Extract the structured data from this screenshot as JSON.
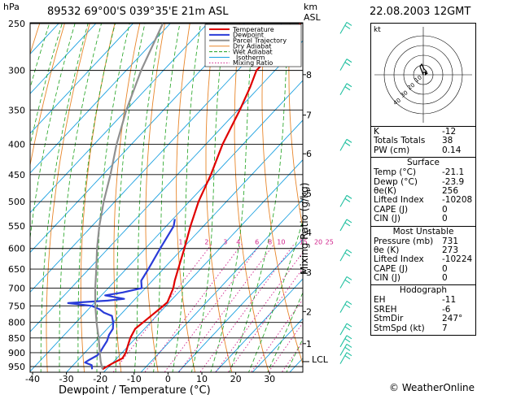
{
  "header": {
    "hpa_label": "hPa",
    "station": "89532  69°00'S  039°35'E    21m  ASL",
    "km_label": "km",
    "asl_label": "ASL",
    "date": "22.08.2003  12GMT"
  },
  "legend": [
    "Temperature",
    "Dewpoint",
    "Parcel Trajectory",
    "Dry Adiabat",
    "Wet Adiabat",
    "Isotherm",
    "Mixing Ratio"
  ],
  "x_axis_title": "Dewpoint / Temperature (°C)",
  "mixing_axis_title": "Mixing Ratio (g/kg)",
  "lcl_label": "LCL",
  "hodograph": {
    "label": "kt",
    "ring_labels": [
      "10",
      "20",
      "30",
      "40"
    ]
  },
  "indices": {
    "top": [
      {
        "label": "K",
        "value": "-12"
      },
      {
        "label": "Totals Totals",
        "value": "38"
      },
      {
        "label": "PW (cm)",
        "value": "0.14"
      }
    ],
    "surface": {
      "title": "Surface",
      "rows": [
        {
          "label": "Temp (°C)",
          "value": "-21.1"
        },
        {
          "label": "Dewp (°C)",
          "value": "-23.9"
        },
        {
          "label": "θe(K)",
          "value": "256"
        },
        {
          "label": "Lifted Index",
          "value": "-10208"
        },
        {
          "label": "CAPE (J)",
          "value": "0"
        },
        {
          "label": "CIN (J)",
          "value": "0"
        }
      ]
    },
    "most_unstable": {
      "title": "Most Unstable",
      "rows": [
        {
          "label": "Pressure (mb)",
          "value": "731"
        },
        {
          "label": "θe (K)",
          "value": "273"
        },
        {
          "label": "Lifted Index",
          "value": "-10224"
        },
        {
          "label": "CAPE (J)",
          "value": "0"
        },
        {
          "label": "CIN (J)",
          "value": "0"
        }
      ]
    },
    "hodograph": {
      "title": "Hodograph",
      "rows": [
        {
          "label": "EH",
          "value": "-11"
        },
        {
          "label": "SREH",
          "value": "-6"
        },
        {
          "label": "StmDir",
          "value": "247°"
        },
        {
          "label": "StmSpd (kt)",
          "value": "7"
        }
      ]
    }
  },
  "copyright": "© WeatherOnline",
  "colors": {
    "temperature": "#e00000",
    "dewpoint": "#2a3cd8",
    "parcel": "#909090",
    "dry_adiabat": "#e8862a",
    "wet_adiabat": "#1aa01a",
    "isotherm": "#1aa0e0",
    "mixing_ratio": "#d0208a",
    "wind": "#20c0a0"
  },
  "chart_data": {
    "type": "line",
    "title": "",
    "xlabel": "Dewpoint / Temperature (°C)",
    "ylabel": "hPa",
    "pressure_ticks": [
      250,
      300,
      350,
      400,
      450,
      500,
      550,
      600,
      650,
      700,
      750,
      800,
      850,
      900,
      950
    ],
    "temp_ticks": [
      -40,
      -30,
      -20,
      -10,
      0,
      10,
      20,
      30
    ],
    "xlim": [
      -40,
      40
    ],
    "ylim": [
      960,
      250
    ],
    "height_ticks_km": [
      {
        "label": "8",
        "p": 305
      },
      {
        "label": "7",
        "p": 357
      },
      {
        "label": "6",
        "p": 415
      },
      {
        "label": "5",
        "p": 484
      },
      {
        "label": "4",
        "p": 564
      },
      {
        "label": "3",
        "p": 658
      },
      {
        "label": "2",
        "p": 767
      },
      {
        "label": "1",
        "p": 869
      }
    ],
    "lcl_p": 932,
    "mixing_ratio_labels": [
      {
        "label": "1",
        "t": -30.5
      },
      {
        "label": "2",
        "t": -23.5
      },
      {
        "label": "3",
        "t": -18.5
      },
      {
        "label": "4",
        "t": -15
      },
      {
        "label": "6",
        "t": -10
      },
      {
        "label": "8",
        "t": -6.5
      },
      {
        "label": "10",
        "t": -3.5
      },
      {
        "label": "15",
        "t": 2.5
      },
      {
        "label": "20",
        "t": 6.5
      },
      {
        "label": "25",
        "t": 9.5
      }
    ],
    "series": [
      {
        "name": "Temperature",
        "points": [
          [
            960,
            -21.1
          ],
          [
            940,
            -20
          ],
          [
            920,
            -18.5
          ],
          [
            900,
            -19
          ],
          [
            880,
            -20
          ],
          [
            860,
            -21
          ],
          [
            850,
            -21.5
          ],
          [
            820,
            -22.5
          ],
          [
            800,
            -22
          ],
          [
            780,
            -21.5
          ],
          [
            760,
            -21
          ],
          [
            740,
            -20.5
          ],
          [
            720,
            -21.5
          ],
          [
            700,
            -22.5
          ],
          [
            680,
            -24
          ],
          [
            650,
            -26
          ],
          [
            600,
            -29.5
          ],
          [
            550,
            -33.5
          ],
          [
            500,
            -37.5
          ],
          [
            450,
            -41
          ],
          [
            400,
            -45.5
          ],
          [
            350,
            -49.5
          ],
          [
            320,
            -52.5
          ],
          [
            300,
            -55
          ],
          [
            280,
            -55
          ],
          [
            260,
            -54.5
          ],
          [
            250,
            -55
          ]
        ]
      },
      {
        "name": "Dewpoint",
        "points": [
          [
            960,
            -23.9
          ],
          [
            945,
            -25
          ],
          [
            935,
            -27.5
          ],
          [
            925,
            -27
          ],
          [
            910,
            -26
          ],
          [
            900,
            -26
          ],
          [
            880,
            -26.5
          ],
          [
            860,
            -27
          ],
          [
            840,
            -28
          ],
          [
            820,
            -28.5
          ],
          [
            800,
            -30
          ],
          [
            780,
            -32
          ],
          [
            770,
            -35
          ],
          [
            760,
            -37
          ],
          [
            750,
            -40
          ],
          [
            742,
            -47
          ],
          [
            735,
            -37
          ],
          [
            730,
            -33
          ],
          [
            720,
            -39
          ],
          [
            712,
            -35
          ],
          [
            700,
            -31
          ],
          [
            680,
            -33
          ],
          [
            650,
            -34
          ],
          [
            600,
            -36
          ],
          [
            550,
            -38
          ],
          [
            535,
            -39.5
          ]
        ]
      },
      {
        "name": "Parcel Trajectory",
        "points": [
          [
            960,
            -21.1
          ],
          [
            932,
            -23.5
          ],
          [
            900,
            -26
          ],
          [
            850,
            -30
          ],
          [
            800,
            -34.5
          ],
          [
            750,
            -39
          ],
          [
            700,
            -43.5
          ],
          [
            650,
            -48
          ],
          [
            600,
            -53
          ],
          [
            550,
            -58
          ],
          [
            500,
            -63
          ],
          [
            450,
            -68
          ],
          [
            400,
            -74
          ],
          [
            350,
            -80
          ],
          [
            300,
            -86
          ],
          [
            250,
            -92
          ]
        ]
      }
    ]
  }
}
